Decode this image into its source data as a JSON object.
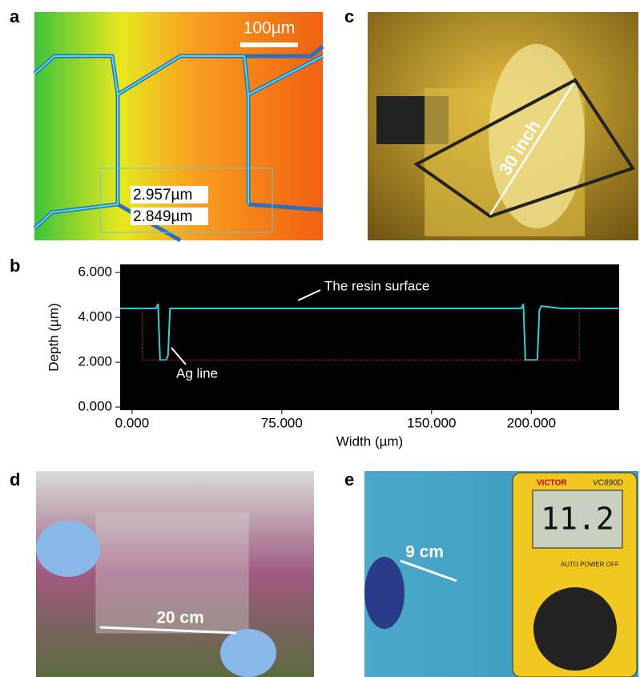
{
  "panels": {
    "a": {
      "label": "a",
      "scale_bar": "100µm",
      "measurements": [
        "2.957µm",
        "2.849µm"
      ]
    },
    "b": {
      "label": "b",
      "chart_data": {
        "type": "line",
        "xlabel": "Width (µm)",
        "ylabel": "Depth (µm)",
        "annotations": [
          "The resin surface",
          "Ag line"
        ],
        "xlim": [
          -6,
          244
        ],
        "ylim": [
          -0.14,
          6.36
        ],
        "xticks": [
          {
            "value": 0,
            "label": "0.000"
          },
          {
            "value": 75,
            "label": "75.000"
          },
          {
            "value": 150,
            "label": "150.000"
          },
          {
            "value": 200,
            "label": "200.000"
          }
        ],
        "yticks": [
          {
            "value": 0,
            "label": "0.000"
          },
          {
            "value": 2,
            "label": "2.000"
          },
          {
            "value": 4,
            "label": "4.000"
          },
          {
            "value": 6,
            "label": "6.000"
          }
        ],
        "series": [
          {
            "color": "#2fd0d8",
            "x": [
              -6,
              10,
              12,
              13,
              14,
              17,
              18,
              19,
              40,
              120,
              195,
              196,
              197,
              198,
              203,
              204,
              205,
              215,
              244
            ],
            "values": [
              4.4,
              4.4,
              4.4,
              4.6,
              2.1,
              2.1,
              2.3,
              4.4,
              4.4,
              4.4,
              4.4,
              4.6,
              2.1,
              2.1,
              2.1,
              4.3,
              4.5,
              4.4,
              4.4
            ]
          },
          {
            "color": "#e02020",
            "x": [
              5,
              5,
              224,
              224
            ],
            "values": [
              4.4,
              2.1,
              2.1,
              4.4
            ]
          }
        ]
      }
    },
    "c": {
      "label": "c",
      "annotation": "30 inch"
    },
    "d": {
      "label": "d",
      "annotation": "20 cm"
    },
    "e": {
      "label": "e",
      "annotation": "9 cm",
      "meter": {
        "brand": "VICTOR",
        "model": "VC890D",
        "display": "11.2",
        "power": "AUTO POWER OFF"
      }
    }
  }
}
